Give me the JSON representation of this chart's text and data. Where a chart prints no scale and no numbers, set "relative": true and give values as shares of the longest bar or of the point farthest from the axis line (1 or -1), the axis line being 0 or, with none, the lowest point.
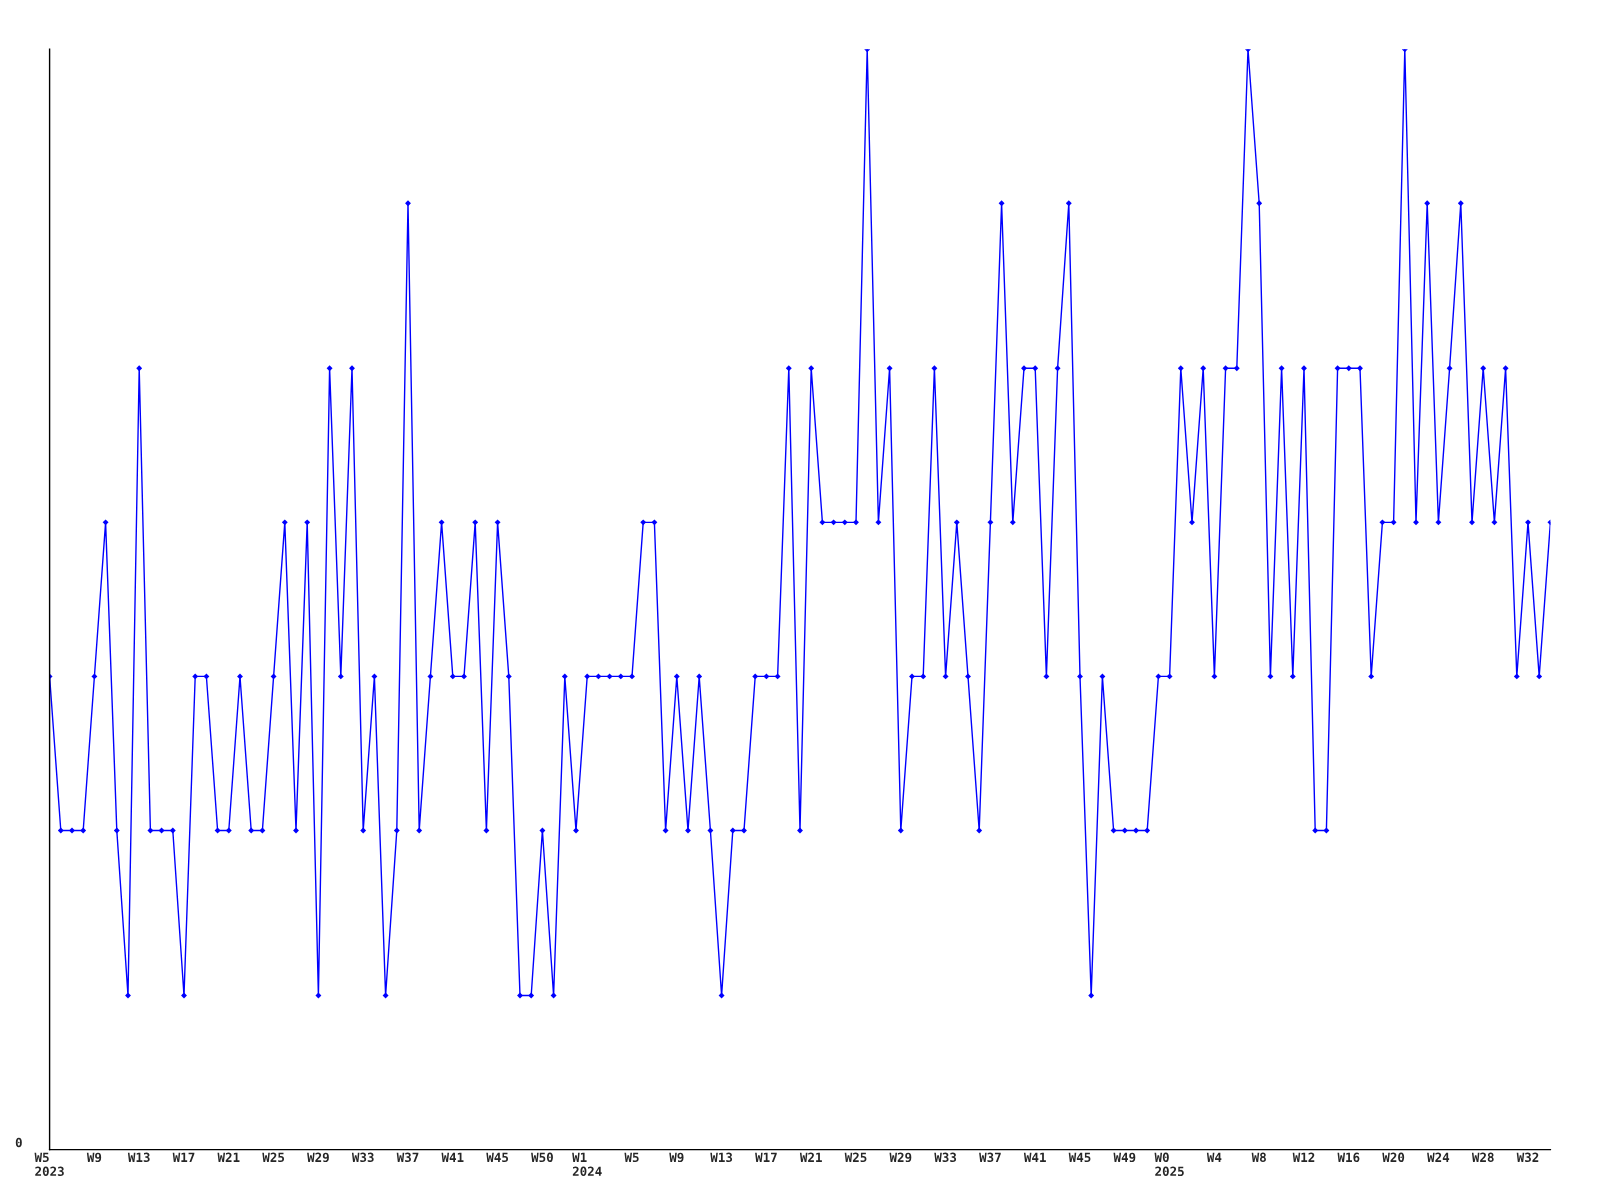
{
  "chart_data": {
    "type": "line",
    "relative": true,
    "marker": "diamond",
    "line_style": "solid",
    "annotations": [
      "0"
    ],
    "categories": [
      "W5\n2023",
      null,
      null,
      null,
      "W9",
      null,
      null,
      null,
      "W13",
      null,
      null,
      null,
      "W17",
      null,
      null,
      null,
      "W21",
      null,
      null,
      null,
      "W25",
      null,
      null,
      null,
      "W29",
      null,
      null,
      null,
      "W33",
      null,
      null,
      null,
      "W37",
      null,
      null,
      null,
      "W41",
      null,
      null,
      null,
      "W45",
      null,
      null,
      null,
      "W50",
      null,
      null,
      null,
      "W1\n2024",
      null,
      null,
      null,
      "W5",
      null,
      null,
      null,
      "W9",
      null,
      null,
      null,
      "W13",
      null,
      null,
      null,
      "W17",
      null,
      null,
      null,
      "W21",
      null,
      null,
      null,
      "W25",
      null,
      null,
      null,
      "W29",
      null,
      null,
      null,
      "W33",
      null,
      null,
      null,
      "W37",
      null,
      null,
      null,
      "W41",
      null,
      null,
      null,
      "W45",
      null,
      null,
      null,
      "W49",
      null,
      null,
      null,
      "W0\n2025",
      null,
      null,
      null,
      "W4",
      null,
      null,
      null,
      "W8",
      null,
      null,
      null,
      "W12",
      null,
      null,
      null,
      "W16",
      null,
      null,
      null,
      "W20",
      null,
      null,
      null,
      "W24",
      null,
      null,
      null,
      "W28",
      null,
      null,
      null,
      "W32",
      null,
      null
    ],
    "series": [
      {
        "color": "#0000ff",
        "values": [
          0.43,
          0.29,
          0.29,
          0.29,
          0.43,
          0.57,
          0.29,
          0.14,
          0.71,
          0.29,
          0.29,
          0.29,
          0.14,
          0.43,
          0.43,
          0.29,
          0.29,
          0.43,
          0.29,
          0.29,
          0.43,
          0.57,
          0.29,
          0.57,
          0.14,
          0.71,
          0.43,
          0.71,
          0.29,
          0.43,
          0.14,
          0.29,
          0.86,
          0.29,
          0.43,
          0.57,
          0.43,
          0.43,
          0.57,
          0.29,
          0.57,
          0.43,
          0.14,
          0.14,
          0.29,
          0.14,
          0.43,
          0.29,
          0.43,
          0.43,
          0.43,
          0.43,
          0.43,
          0.57,
          0.57,
          0.29,
          0.43,
          0.29,
          0.43,
          0.29,
          0.14,
          0.29,
          0.29,
          0.43,
          0.43,
          0.43,
          0.71,
          0.29,
          0.71,
          0.57,
          0.57,
          0.57,
          0.57,
          1,
          0.57,
          0.71,
          0.29,
          0.43,
          0.43,
          0.71,
          0.43,
          0.57,
          0.43,
          0.29,
          0.57,
          0.86,
          0.57,
          0.71,
          0.71,
          0.43,
          0.71,
          0.86,
          0.43,
          0.14,
          0.43,
          0.29,
          0.29,
          0.29,
          0.29,
          0.43,
          0.43,
          0.71,
          0.57,
          0.71,
          0.43,
          0.71,
          0.71,
          1,
          0.86,
          0.43,
          0.71,
          0.43,
          0.71,
          0.29,
          0.29,
          0.71,
          0.71,
          0.71,
          0.43,
          0.57,
          0.57,
          1,
          0.57,
          0.86,
          0.57,
          0.71,
          0.86,
          0.57,
          0.71,
          0.57,
          0.71,
          0.43,
          0.57,
          0.43,
          0.57
        ]
      }
    ]
  }
}
